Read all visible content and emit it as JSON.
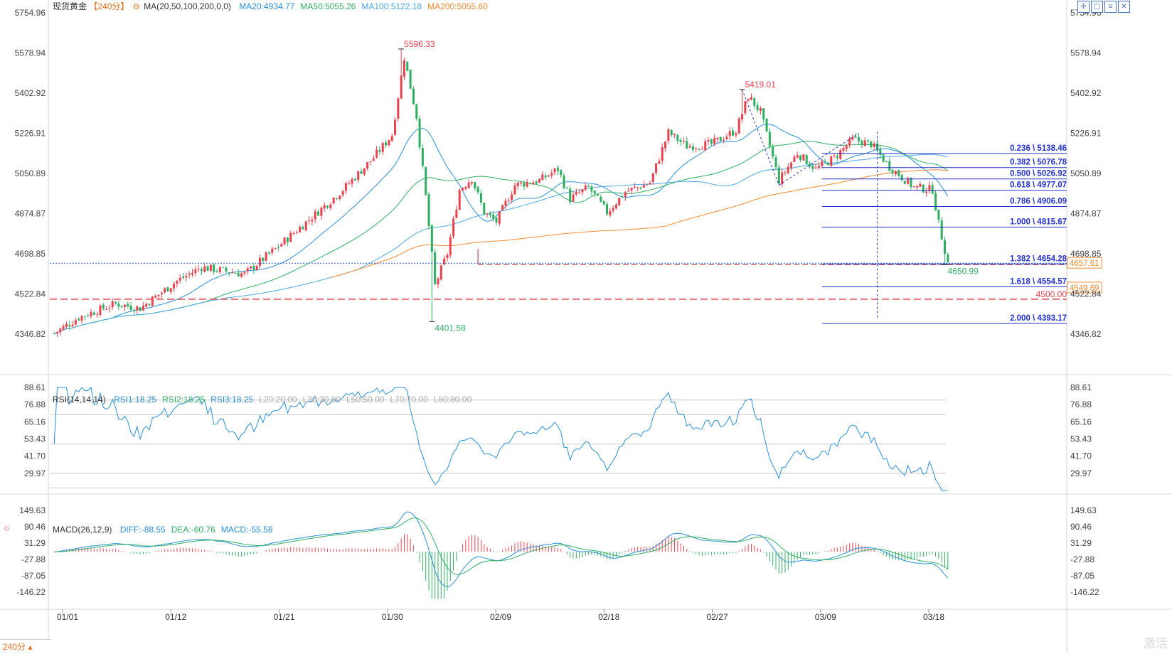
{
  "symbol": "现货黄金",
  "period": "240分",
  "period_tag": "【240分】",
  "ma_label": "MA(20,50,100,200,0,0)",
  "ma_values": [
    {
      "label": "MA20:4934.77",
      "color": "#2b8fd6"
    },
    {
      "label": "MA50:5055.26",
      "color": "#2fae62"
    },
    {
      "label": "MA100:5122.18",
      "color": "#4aa8e0"
    },
    {
      "label": "MA200:5055.60",
      "color": "#f08a30"
    }
  ],
  "rsi_label": "RSI(14,14,14)",
  "rsi_values": [
    {
      "label": "RSI1:18.25",
      "color": "#2b8fd6"
    },
    {
      "label": "RSI2:18.25",
      "color": "#2fae62"
    },
    {
      "label": "RSI3:18.25",
      "color": "#2b8fd6"
    },
    {
      "label": "L20:20.00",
      "color": "#aaaaaa"
    },
    {
      "label": "L30:30.00",
      "color": "#aaaaaa"
    },
    {
      "label": "L50:50.00",
      "color": "#aaaaaa"
    },
    {
      "label": "L70:70.00",
      "color": "#aaaaaa"
    },
    {
      "label": "L80:80.00",
      "color": "#aaaaaa"
    }
  ],
  "macd_label": "MACD(26,12,9)",
  "macd_values": [
    {
      "label": "DIFF:-88.55",
      "color": "#2b8fd6"
    },
    {
      "label": "DEA:-60.76",
      "color": "#2fae62"
    },
    {
      "label": "MACD:-55.58",
      "color": "#2b8fd6"
    }
  ],
  "watermark": "激活",
  "colors": {
    "up": "#e8434f",
    "down": "#2fae62",
    "ma20": "#2b8fd6",
    "ma50": "#2fae62",
    "ma100": "#4aa8e0",
    "ma200": "#f08a30",
    "fib": "#2233cc"
  },
  "chart_data": {
    "type": "candlestick",
    "price_ticks": [
      "5754.96",
      "5578.94",
      "5402.92",
      "5226.91",
      "5050.89",
      "4874.87",
      "4698.85",
      "4522.84",
      "4346.82"
    ],
    "price_range": [
      4346.82,
      5754.96
    ],
    "date_ticks": [
      "01/01",
      "01/12",
      "01/21",
      "01/30",
      "02/09",
      "02/18",
      "02/27",
      "03/09",
      "03/18"
    ],
    "anchors": [
      {
        "t": 0,
        "v": 4350
      },
      {
        "t": 8,
        "v": 4420
      },
      {
        "t": 20,
        "v": 4480
      },
      {
        "t": 28,
        "v": 4460
      },
      {
        "t": 40,
        "v": 4580
      },
      {
        "t": 48,
        "v": 4640
      },
      {
        "t": 62,
        "v": 4610
      },
      {
        "t": 72,
        "v": 4720
      },
      {
        "t": 84,
        "v": 4860
      },
      {
        "t": 94,
        "v": 4980
      },
      {
        "t": 104,
        "v": 5120
      },
      {
        "t": 110,
        "v": 5220
      },
      {
        "t": 114,
        "v": 5560
      },
      {
        "t": 118,
        "v": 5300
      },
      {
        "t": 121,
        "v": 4950
      },
      {
        "t": 124,
        "v": 4560
      },
      {
        "t": 128,
        "v": 4700
      },
      {
        "t": 132,
        "v": 4980
      },
      {
        "t": 136,
        "v": 5030
      },
      {
        "t": 140,
        "v": 4880
      },
      {
        "t": 144,
        "v": 4840
      },
      {
        "t": 150,
        "v": 5000
      },
      {
        "t": 158,
        "v": 5020
      },
      {
        "t": 164,
        "v": 5070
      },
      {
        "t": 168,
        "v": 4940
      },
      {
        "t": 174,
        "v": 4990
      },
      {
        "t": 180,
        "v": 4880
      },
      {
        "t": 186,
        "v": 4970
      },
      {
        "t": 194,
        "v": 5010
      },
      {
        "t": 200,
        "v": 5230
      },
      {
        "t": 206,
        "v": 5170
      },
      {
        "t": 214,
        "v": 5180
      },
      {
        "t": 222,
        "v": 5240
      },
      {
        "t": 226,
        "v": 5390
      },
      {
        "t": 230,
        "v": 5320
      },
      {
        "t": 236,
        "v": 5020
      },
      {
        "t": 242,
        "v": 5140
      },
      {
        "t": 248,
        "v": 5070
      },
      {
        "t": 254,
        "v": 5120
      },
      {
        "t": 260,
        "v": 5200
      },
      {
        "t": 266,
        "v": 5180
      },
      {
        "t": 272,
        "v": 5080
      },
      {
        "t": 280,
        "v": 4990
      },
      {
        "t": 286,
        "v": 4980
      },
      {
        "t": 288,
        "v": 4830
      },
      {
        "t": 291,
        "v": 4660
      }
    ],
    "total_bars": 292,
    "annotations": [
      {
        "label": "5596.33",
        "value": 5596.33,
        "t": 113,
        "color": "#e8434f"
      },
      {
        "label": "4401.58",
        "value": 4401.58,
        "t": 123,
        "color": "#2fae62"
      },
      {
        "label": "5419.01",
        "value": 5419.01,
        "t": 224,
        "color": "#e8434f"
      },
      {
        "label": "4650.99",
        "value": 4650.99,
        "t": 290,
        "color": "#2fae62"
      }
    ],
    "fibonacci": [
      {
        "label": "0.236 \\ 5138.46",
        "value": 5138.46
      },
      {
        "label": "0.382 \\ 5076.78",
        "value": 5076.78
      },
      {
        "label": "0.500 \\ 5026.92",
        "value": 5026.92
      },
      {
        "label": "0.618 \\ 4977.07",
        "value": 4977.07
      },
      {
        "label": "0.786 \\ 4906.09",
        "value": 4906.09
      },
      {
        "label": "1.000 \\ 4815.67",
        "value": 4815.67
      },
      {
        "label": "1.382 \\ 4654.28",
        "value": 4654.28
      },
      {
        "label": "1.618 \\ 4554.57",
        "value": 4554.57
      },
      {
        "label": "2.000 \\ 4393.17",
        "value": 4393.17
      }
    ],
    "level_4500": {
      "label": "4500.00",
      "value": 4500
    },
    "right_badges": [
      {
        "label": "4657.61",
        "value": 4657.61,
        "color": "#f08a30"
      },
      {
        "label": "4549.69",
        "value": 4549.69,
        "color": "#f08a30"
      }
    ],
    "rsi_ticks": [
      "88.61",
      "76.88",
      "65.16",
      "53.43",
      "41.70",
      "29.97"
    ],
    "rsi_range": [
      18.25,
      88.61
    ],
    "rsi_levels": [
      80,
      70,
      50,
      30,
      20
    ],
    "macd_ticks": [
      "149.63",
      "90.46",
      "31.29",
      "-27.88",
      "-87.05",
      "-146.22"
    ],
    "macd_range": [
      -170,
      170
    ]
  }
}
